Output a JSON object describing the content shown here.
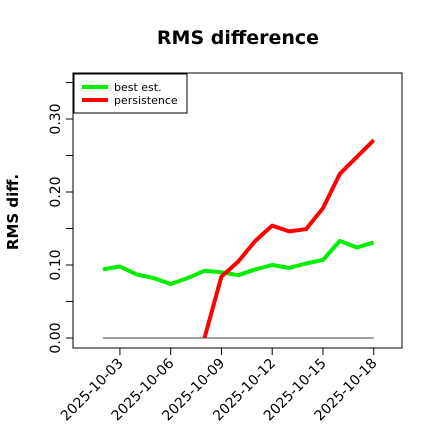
{
  "chart_data": {
    "type": "line",
    "title": "RMS difference",
    "xlabel": "",
    "ylabel": "RMS diff.",
    "x": [
      "2025-10-02",
      "2025-10-03",
      "2025-10-04",
      "2025-10-05",
      "2025-10-06",
      "2025-10-07",
      "2025-10-08",
      "2025-10-09",
      "2025-10-10",
      "2025-10-11",
      "2025-10-12",
      "2025-10-13",
      "2025-10-14",
      "2025-10-15",
      "2025-10-16",
      "2025-10-17",
      "2025-10-18"
    ],
    "x_ticks": [
      "2025-10-03",
      "2025-10-06",
      "2025-10-09",
      "2025-10-12",
      "2025-10-15",
      "2025-10-18"
    ],
    "y_ticks": [
      "0.00",
      "0.10",
      "0.20",
      "0.30"
    ],
    "ylim": [
      -0.01,
      0.36
    ],
    "series": [
      {
        "name": "best est.",
        "color": "#00ee00",
        "values": [
          0.094,
          0.098,
          0.087,
          0.082,
          0.074,
          0.082,
          0.092,
          0.09,
          0.086,
          0.094,
          0.1,
          0.096,
          0.102,
          0.107,
          0.133,
          0.124,
          0.131
        ]
      },
      {
        "name": "persistence",
        "color": "#ff0000",
        "values": [
          null,
          null,
          null,
          null,
          null,
          null,
          0.0,
          0.084,
          0.105,
          0.133,
          0.154,
          0.146,
          0.149,
          0.178,
          0.225,
          0.248,
          0.271
        ]
      }
    ],
    "reference_line": {
      "value": 0,
      "color": "#808080"
    },
    "legend_position": "top-left",
    "grid": false
  }
}
